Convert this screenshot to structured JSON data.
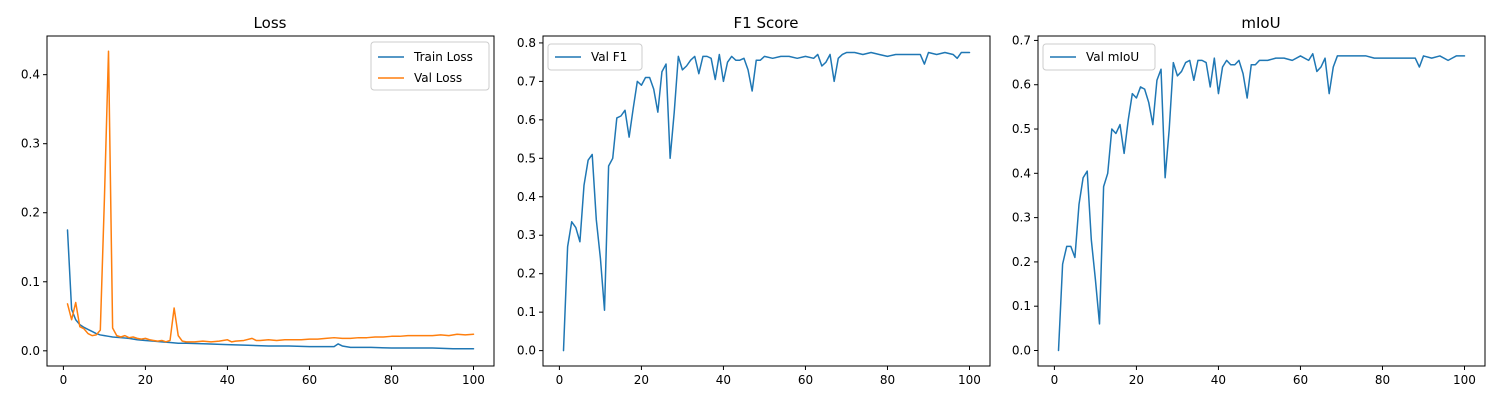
{
  "chart_data": [
    {
      "type": "line",
      "title": "Loss",
      "xlabel": "",
      "ylabel": "",
      "xlim": [
        -4,
        105
      ],
      "ylim": [
        -0.022,
        0.456
      ],
      "xticks": [
        0,
        20,
        40,
        60,
        80,
        100
      ],
      "yticks": [
        0.0,
        0.1,
        0.2,
        0.3,
        0.4
      ],
      "ytick_labels": [
        "0.0",
        "0.1",
        "0.2",
        "0.3",
        "0.4"
      ],
      "legend_position": "top-right",
      "grid": false,
      "series": [
        {
          "name": "Train Loss",
          "color": "#1f77b4",
          "x": [
            1,
            2,
            3,
            4,
            5,
            6,
            7,
            8,
            9,
            10,
            11,
            12,
            14,
            16,
            18,
            20,
            22,
            24,
            26,
            28,
            30,
            35,
            40,
            45,
            50,
            55,
            60,
            62,
            64,
            66,
            67,
            68,
            70,
            75,
            80,
            85,
            90,
            95,
            100
          ],
          "y": [
            0.175,
            0.06,
            0.045,
            0.038,
            0.034,
            0.031,
            0.028,
            0.025,
            0.023,
            0.022,
            0.021,
            0.02,
            0.019,
            0.018,
            0.016,
            0.015,
            0.014,
            0.013,
            0.012,
            0.011,
            0.011,
            0.01,
            0.009,
            0.008,
            0.007,
            0.007,
            0.006,
            0.006,
            0.006,
            0.006,
            0.01,
            0.007,
            0.005,
            0.005,
            0.004,
            0.004,
            0.004,
            0.003,
            0.003
          ]
        },
        {
          "name": "Val Loss",
          "color": "#ff7f0e",
          "x": [
            1,
            2,
            3,
            4,
            5,
            6,
            7,
            8,
            9,
            10,
            11,
            12,
            13,
            14,
            15,
            16,
            17,
            18,
            19,
            20,
            21,
            22,
            23,
            24,
            25,
            26,
            27,
            28,
            29,
            30,
            32,
            34,
            36,
            38,
            40,
            41,
            42,
            44,
            46,
            47,
            48,
            50,
            52,
            54,
            56,
            58,
            60,
            62,
            64,
            66,
            68,
            70,
            72,
            74,
            76,
            78,
            80,
            82,
            84,
            86,
            88,
            90,
            92,
            94,
            96,
            98,
            100
          ],
          "y": [
            0.068,
            0.045,
            0.07,
            0.035,
            0.032,
            0.025,
            0.022,
            0.023,
            0.03,
            0.22,
            0.434,
            0.033,
            0.022,
            0.02,
            0.022,
            0.019,
            0.02,
            0.018,
            0.017,
            0.018,
            0.016,
            0.015,
            0.014,
            0.015,
            0.013,
            0.015,
            0.062,
            0.022,
            0.014,
            0.013,
            0.013,
            0.014,
            0.013,
            0.014,
            0.016,
            0.013,
            0.014,
            0.015,
            0.018,
            0.015,
            0.015,
            0.016,
            0.015,
            0.016,
            0.016,
            0.016,
            0.017,
            0.017,
            0.018,
            0.019,
            0.018,
            0.018,
            0.019,
            0.019,
            0.02,
            0.02,
            0.021,
            0.021,
            0.022,
            0.022,
            0.022,
            0.022,
            0.023,
            0.022,
            0.024,
            0.023,
            0.024
          ]
        }
      ]
    },
    {
      "type": "line",
      "title": "F1 Score",
      "xlabel": "",
      "ylabel": "",
      "xlim": [
        -4,
        105
      ],
      "ylim": [
        -0.04,
        0.818
      ],
      "xticks": [
        0,
        20,
        40,
        60,
        80,
        100
      ],
      "yticks": [
        0.0,
        0.1,
        0.2,
        0.3,
        0.4,
        0.5,
        0.6,
        0.7,
        0.8
      ],
      "ytick_labels": [
        "0.0",
        "0.1",
        "0.2",
        "0.3",
        "0.4",
        "0.5",
        "0.6",
        "0.7",
        "0.8"
      ],
      "legend_position": "top-left",
      "grid": false,
      "series": [
        {
          "name": "Val F1",
          "color": "#1f77b4",
          "x": [
            1,
            2,
            3,
            4,
            5,
            6,
            7,
            8,
            9,
            10,
            11,
            12,
            13,
            14,
            15,
            16,
            17,
            18,
            19,
            20,
            21,
            22,
            23,
            24,
            25,
            26,
            27,
            28,
            29,
            30,
            31,
            32,
            33,
            34,
            35,
            36,
            37,
            38,
            39,
            40,
            41,
            42,
            43,
            44,
            45,
            46,
            47,
            48,
            49,
            50,
            52,
            54,
            56,
            58,
            60,
            62,
            63,
            64,
            65,
            66,
            67,
            68,
            69,
            70,
            72,
            74,
            76,
            78,
            80,
            82,
            84,
            86,
            88,
            89,
            90,
            92,
            94,
            96,
            97,
            98,
            100
          ],
          "y": [
            0.0,
            0.27,
            0.335,
            0.32,
            0.283,
            0.43,
            0.495,
            0.51,
            0.34,
            0.24,
            0.105,
            0.48,
            0.5,
            0.605,
            0.61,
            0.625,
            0.555,
            0.63,
            0.7,
            0.69,
            0.71,
            0.71,
            0.68,
            0.62,
            0.725,
            0.745,
            0.5,
            0.62,
            0.765,
            0.73,
            0.74,
            0.755,
            0.765,
            0.72,
            0.765,
            0.765,
            0.76,
            0.705,
            0.77,
            0.7,
            0.75,
            0.765,
            0.755,
            0.755,
            0.76,
            0.73,
            0.675,
            0.755,
            0.755,
            0.765,
            0.76,
            0.765,
            0.765,
            0.76,
            0.765,
            0.76,
            0.77,
            0.74,
            0.75,
            0.77,
            0.7,
            0.76,
            0.77,
            0.775,
            0.775,
            0.77,
            0.775,
            0.77,
            0.765,
            0.77,
            0.77,
            0.77,
            0.77,
            0.745,
            0.775,
            0.77,
            0.775,
            0.77,
            0.76,
            0.775,
            0.775
          ]
        }
      ]
    },
    {
      "type": "line",
      "title": "mIoU",
      "xlabel": "",
      "ylabel": "",
      "xlim": [
        -4,
        105
      ],
      "ylim": [
        -0.035,
        0.71
      ],
      "xticks": [
        0,
        20,
        40,
        60,
        80,
        100
      ],
      "yticks": [
        0.0,
        0.1,
        0.2,
        0.3,
        0.4,
        0.5,
        0.6,
        0.7
      ],
      "ytick_labels": [
        "0.0",
        "0.1",
        "0.2",
        "0.3",
        "0.4",
        "0.5",
        "0.6",
        "0.7"
      ],
      "legend_position": "top-left",
      "grid": false,
      "series": [
        {
          "name": "Val mIoU",
          "color": "#1f77b4",
          "x": [
            1,
            2,
            3,
            4,
            5,
            6,
            7,
            8,
            9,
            10,
            11,
            12,
            13,
            14,
            15,
            16,
            17,
            18,
            19,
            20,
            21,
            22,
            23,
            24,
            25,
            26,
            27,
            28,
            29,
            30,
            31,
            32,
            33,
            34,
            35,
            36,
            37,
            38,
            39,
            40,
            41,
            42,
            43,
            44,
            45,
            46,
            47,
            48,
            49,
            50,
            52,
            54,
            56,
            58,
            60,
            62,
            63,
            64,
            65,
            66,
            67,
            68,
            69,
            70,
            72,
            74,
            76,
            78,
            80,
            82,
            84,
            86,
            88,
            89,
            90,
            92,
            94,
            96,
            97,
            98,
            100
          ],
          "y": [
            0.0,
            0.195,
            0.235,
            0.235,
            0.21,
            0.33,
            0.39,
            0.405,
            0.25,
            0.16,
            0.06,
            0.37,
            0.4,
            0.5,
            0.49,
            0.51,
            0.445,
            0.52,
            0.58,
            0.57,
            0.595,
            0.59,
            0.56,
            0.51,
            0.61,
            0.635,
            0.39,
            0.5,
            0.65,
            0.62,
            0.63,
            0.65,
            0.655,
            0.61,
            0.655,
            0.655,
            0.65,
            0.595,
            0.66,
            0.58,
            0.64,
            0.655,
            0.645,
            0.645,
            0.655,
            0.625,
            0.57,
            0.645,
            0.645,
            0.655,
            0.655,
            0.66,
            0.66,
            0.655,
            0.665,
            0.655,
            0.67,
            0.63,
            0.64,
            0.66,
            0.58,
            0.64,
            0.665,
            0.665,
            0.665,
            0.665,
            0.665,
            0.66,
            0.66,
            0.66,
            0.66,
            0.66,
            0.66,
            0.64,
            0.665,
            0.66,
            0.665,
            0.655,
            0.66,
            0.665,
            0.665
          ]
        }
      ]
    }
  ]
}
